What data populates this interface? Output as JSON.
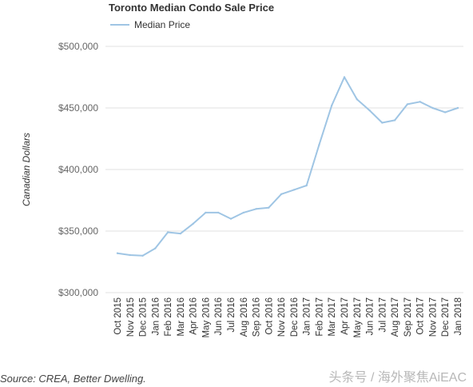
{
  "chart_data": {
    "type": "line",
    "title": "Toronto Median Condo Sale Price",
    "ylabel": "Canadian Dollars",
    "xlabel": "",
    "ylim": [
      300000,
      500000
    ],
    "yticks": [
      300000,
      350000,
      400000,
      450000,
      500000
    ],
    "ytick_labels": [
      "$300,000",
      "$350,000",
      "$400,000",
      "$450,000",
      "$500,000"
    ],
    "grid": true,
    "legend_position": "top-left",
    "categories": [
      "Oct 2015",
      "Nov 2015",
      "Dec 2015",
      "Jan 2016",
      "Feb 2016",
      "Mar 2016",
      "Apr 2016",
      "May 2016",
      "Jun 2016",
      "Jul 2016",
      "Aug 2016",
      "Sep 2016",
      "Oct 2016",
      "Nov 2016",
      "Dec 2016",
      "Jan 2017",
      "Feb 2017",
      "Mar 2017",
      "Apr 2017",
      "May 2017",
      "Jun 2017",
      "Jul 2017",
      "Aug 2017",
      "Sep 2017",
      "Oct 2017",
      "Nov 2017",
      "Dec 2017",
      "Jan 2018"
    ],
    "series": [
      {
        "name": "Median Price",
        "color": "#9fc5e4",
        "values": [
          332000,
          330500,
          330000,
          336000,
          349000,
          348000,
          356000,
          365000,
          365000,
          360000,
          365000,
          368000,
          369000,
          380000,
          383500,
          387000,
          420000,
          452000,
          475000,
          457000,
          448000,
          438000,
          440000,
          453000,
          455000,
          450000,
          446500,
          450000
        ]
      }
    ]
  },
  "source_note": "Source: CREA, Better Dwelling.",
  "watermark": "头条号 / 海外聚焦AiEAC"
}
